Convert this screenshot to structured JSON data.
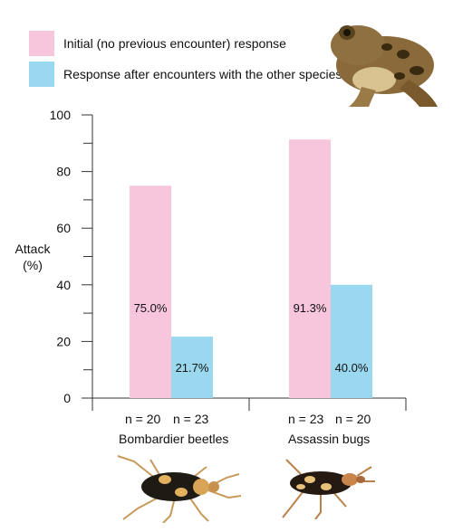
{
  "legend": [
    {
      "label": "Initial (no previous encounter) response",
      "color": "#f7c6dc"
    },
    {
      "label": "Response after encounters with the other species",
      "color": "#99d8ef"
    }
  ],
  "y_axis": {
    "label_line1": "Attack",
    "label_line2": "(%)"
  },
  "groups": [
    {
      "name": "Bombardier beetles",
      "n_labels": [
        "n = 20",
        "n = 23"
      ]
    },
    {
      "name": "Assassin bugs",
      "n_labels": [
        "n = 23",
        "n = 20"
      ]
    }
  ],
  "illustrations": [
    "frog-image",
    "bombardier-beetle-image",
    "assassin-bug-image"
  ],
  "chart_data": {
    "type": "bar",
    "categories": [
      "Bombardier beetles",
      "Assassin bugs"
    ],
    "series": [
      {
        "name": "Initial (no previous encounter) response",
        "values": [
          75.0,
          91.3
        ],
        "labels": [
          "75.0%",
          "91.3%"
        ],
        "color": "#f7c6dc"
      },
      {
        "name": "Response after encounters with the other species",
        "values": [
          21.7,
          40.0
        ],
        "labels": [
          "21.7%",
          "40.0%"
        ],
        "color": "#99d8ef"
      }
    ],
    "ylabel": "Attack (%)",
    "ylim": [
      0,
      100
    ],
    "y_ticks": [
      0,
      20,
      40,
      60,
      80,
      100
    ],
    "grid": false,
    "legend_position": "top-left"
  }
}
